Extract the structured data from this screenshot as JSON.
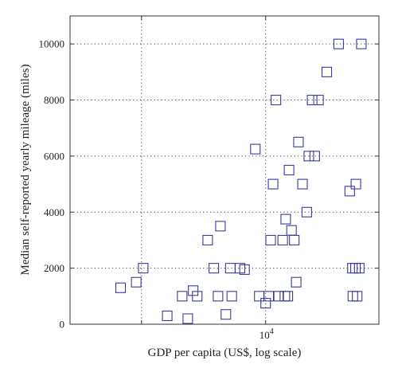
{
  "chart_data": {
    "type": "scatter",
    "xlabel": "GDP per capita (US$, log scale)",
    "ylabel": "Median self-reported yearly mileage (miles)",
    "x_scale": "log",
    "xlim": [
      1500,
      30000
    ],
    "ylim": [
      0,
      11000
    ],
    "x_grid": [
      3000,
      10000
    ],
    "x_tick_labels": [
      {
        "value": 10000,
        "base": "10",
        "exponent": "4"
      }
    ],
    "y_ticks": [
      0,
      2000,
      4000,
      6000,
      8000,
      10000
    ],
    "y_tick_labels": [
      "0",
      "2000",
      "4000",
      "6000",
      "8000",
      "10000"
    ],
    "grid": true,
    "legend": "none",
    "marker_color": "#3b3b9e",
    "marker_shape": "open-square",
    "series": [
      {
        "x": [
          2450,
          2850,
          3050,
          3850,
          4450,
          4700,
          4950,
          5150,
          5700,
          6050,
          6300,
          6450,
          6800,
          7100,
          7200,
          7800,
          8150,
          9050,
          9400,
          10000,
          10300,
          10500,
          10750,
          11050,
          11350,
          11800,
          12050,
          12150,
          12400,
          12550,
          12850,
          13200,
          13450,
          13750,
          14300,
          14900,
          15200,
          15700,
          16100,
          16700,
          18100,
          20300,
          22600,
          23200,
          23300,
          23900,
          24000,
          24300,
          24800,
          25300
        ],
        "y": [
          1300,
          1500,
          2000,
          300,
          1000,
          200,
          1200,
          1000,
          3000,
          2000,
          1000,
          3500,
          350,
          2000,
          1000,
          2000,
          1950,
          6250,
          1000,
          750,
          1000,
          3000,
          5000,
          8000,
          1000,
          3000,
          1000,
          3750,
          1000,
          5500,
          3350,
          3000,
          1500,
          6500,
          5000,
          4000,
          6000,
          8000,
          6000,
          8000,
          9000,
          10000,
          4750,
          2000,
          1000,
          2000,
          5000,
          1000,
          2000,
          10000
        ]
      }
    ]
  }
}
